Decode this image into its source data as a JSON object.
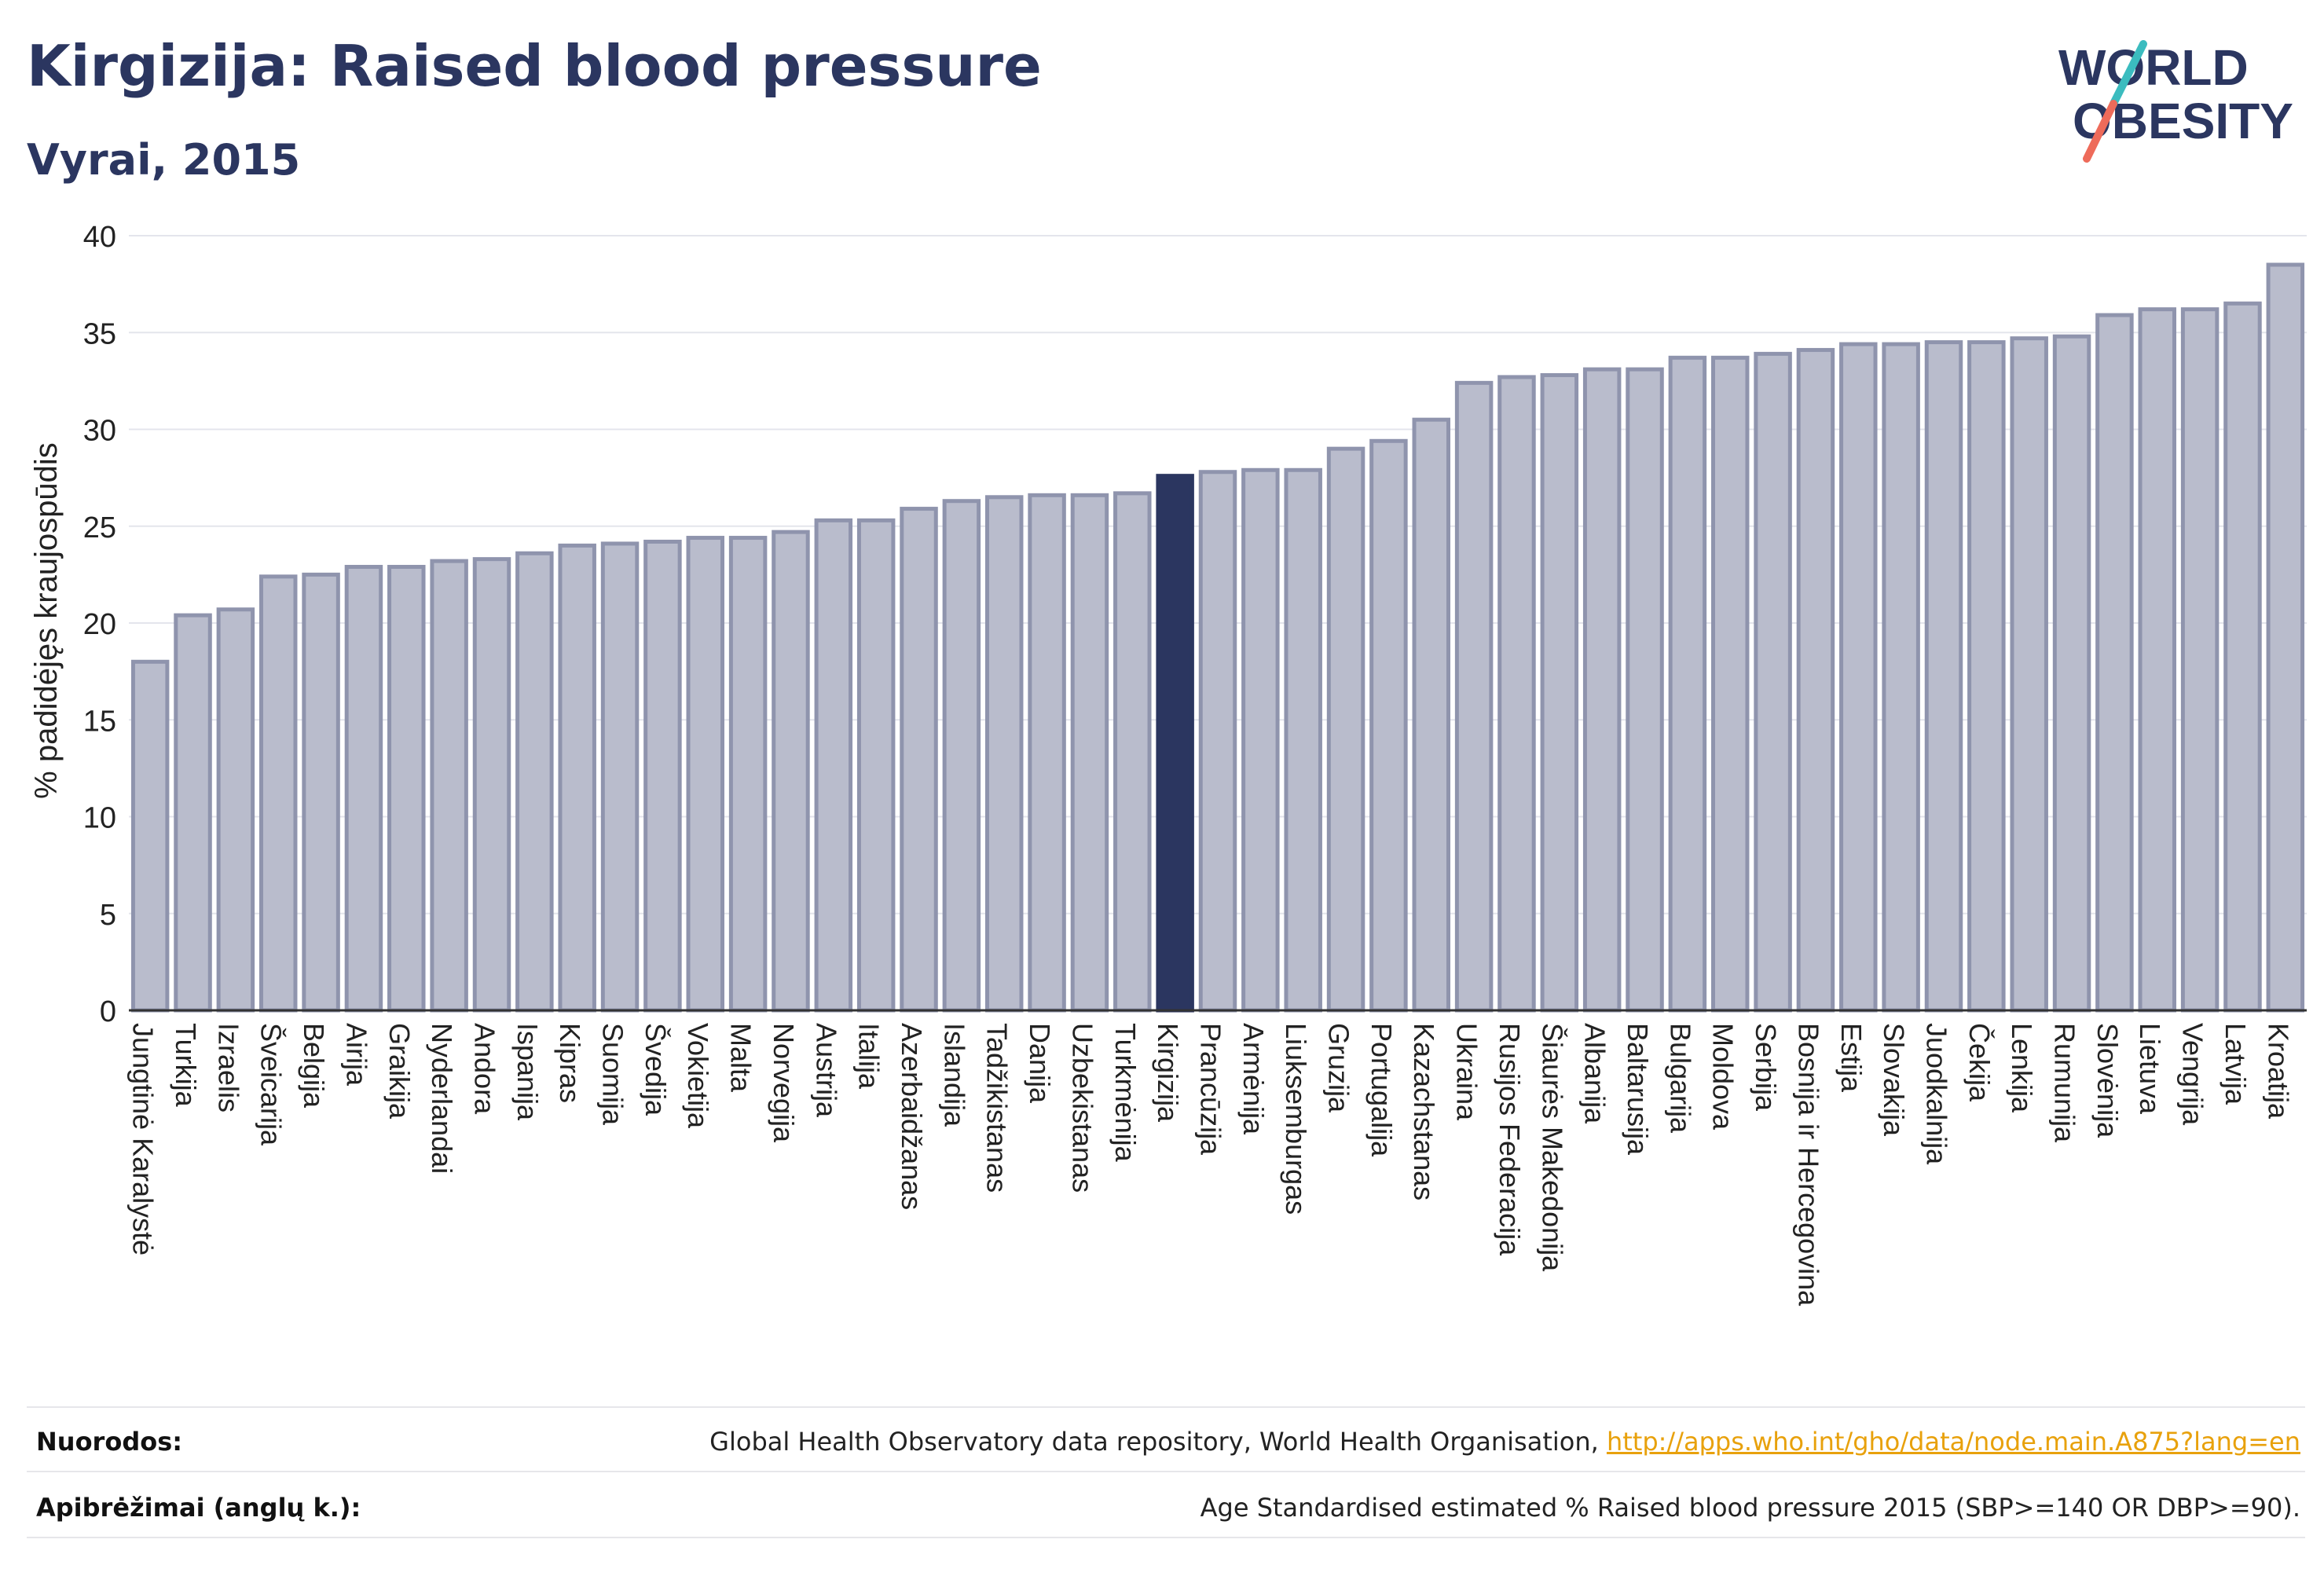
{
  "header": {
    "title": "Kirgizija: Raised blood pressure",
    "subtitle": "Vyrai, 2015"
  },
  "logo": {
    "line1": "WORLD",
    "line2": "OBESITY"
  },
  "chart_data": {
    "type": "bar",
    "ylabel": "% padidėjęs kraujospūdis",
    "ylim": [
      0,
      40
    ],
    "yticks": [
      0,
      5,
      10,
      15,
      20,
      25,
      30,
      35,
      40
    ],
    "grid": true,
    "highlight": "Kirgizija",
    "colors": {
      "bar": "#b9bccc",
      "bar_edge": "#8f94ad",
      "highlight": "#2b3660"
    },
    "categories": [
      "Jungtinė Karalystė",
      "Turkija",
      "Izraelis",
      "Šveicarija",
      "Belgija",
      "Airija",
      "Graikija",
      "Nyderlandai",
      "Andora",
      "Ispanija",
      "Kipras",
      "Suomija",
      "Švedija",
      "Vokietija",
      "Malta",
      "Norvegija",
      "Austrija",
      "Italija",
      "Azerbaidžanas",
      "Islandija",
      "Tadžikistanas",
      "Danija",
      "Uzbekistanas",
      "Turkmėnija",
      "Kirgizija",
      "Prancūzija",
      "Armėnija",
      "Liuksemburgas",
      "Gruzija",
      "Portugalija",
      "Kazachstanas",
      "Ukraina",
      "Rusijos Federacija",
      "Šiaurės Makedonija",
      "Albanija",
      "Baltarusija",
      "Bulgarija",
      "Moldova",
      "Serbija",
      "Bosnija ir Hercegovina",
      "Estija",
      "Slovakija",
      "Juodkalnija",
      "Čekija",
      "Lenkija",
      "Rumunija",
      "Slovėnija",
      "Lietuva",
      "Vengrija",
      "Latvija",
      "Kroatija"
    ],
    "values": [
      18.0,
      20.4,
      20.7,
      22.4,
      22.5,
      22.9,
      22.9,
      23.2,
      23.3,
      23.6,
      24.0,
      24.1,
      24.2,
      24.4,
      24.4,
      24.7,
      25.3,
      25.3,
      25.9,
      26.3,
      26.5,
      26.6,
      26.6,
      26.7,
      27.6,
      27.8,
      27.9,
      27.9,
      29.0,
      29.4,
      30.5,
      32.4,
      32.7,
      32.8,
      33.1,
      33.1,
      33.7,
      33.7,
      33.9,
      34.1,
      34.4,
      34.4,
      34.5,
      34.5,
      34.7,
      34.8,
      35.9,
      36.2,
      36.2,
      36.5,
      38.5
    ]
  },
  "footer": {
    "sources_label": "Nuorodos:",
    "sources_text": "Global Health Observatory data repository, World Health Organisation, ",
    "sources_link": "http://apps.who.int/gho/data/node.main.A875?lang=en",
    "definitions_label": "Apibrėžimai (anglų k.):",
    "definitions_text": "Age Standardised estimated % Raised blood pressure 2015 (SBP>=140 OR DBP>=90)."
  }
}
